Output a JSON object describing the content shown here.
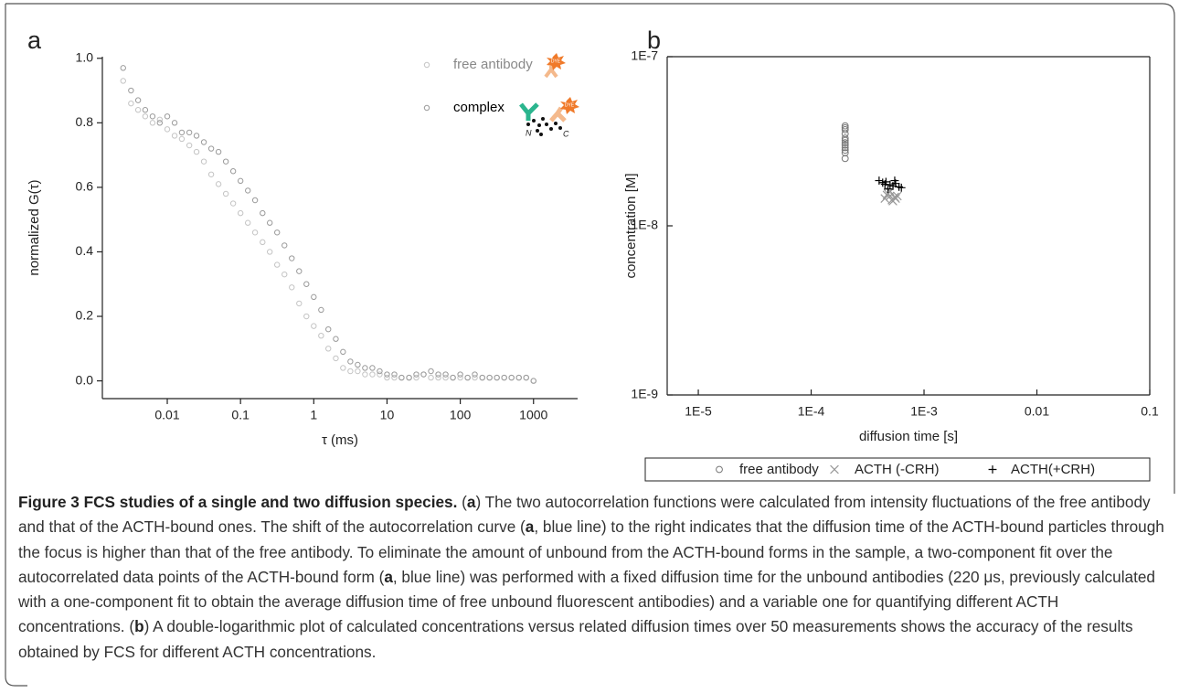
{
  "chart_data": [
    {
      "type": "scatter",
      "panel_label": "a",
      "x_label": "τ (ms)",
      "y_label": "normalized G(τ)",
      "xlog": true,
      "xlim": [
        0.0013,
        4000
      ],
      "ylim": [
        -0.055,
        1.005
      ],
      "xticks": [
        0.01,
        0.1,
        1,
        10,
        100,
        1000
      ],
      "yticks": [
        {
          "value": 0,
          "label": "0.0"
        },
        0.2,
        0.4,
        0.6,
        0.8,
        {
          "value": 1,
          "label": "1.0"
        }
      ],
      "legend": "upper right",
      "annotations": [
        "DYE",
        "N",
        "C"
      ],
      "x": [
        0.0025,
        0.0032,
        0.004,
        0.005,
        0.0063,
        0.0079,
        0.01,
        0.0126,
        0.0158,
        0.02,
        0.0251,
        0.0316,
        0.0398,
        0.0501,
        0.0631,
        0.0794,
        0.1,
        0.126,
        0.158,
        0.2,
        0.251,
        0.316,
        0.398,
        0.501,
        0.631,
        0.794,
        1,
        1.26,
        1.58,
        2,
        2.51,
        3.16,
        3.98,
        5.01,
        6.31,
        7.94,
        10,
        12.6,
        15.8,
        20,
        25.1,
        31.6,
        39.8,
        50.1,
        63.1,
        79.4,
        100,
        126,
        158,
        200,
        251,
        316,
        398,
        501,
        631,
        794,
        1000
      ],
      "series": [
        {
          "name": "free antibody",
          "color": "#c4c4c4",
          "marker": "circle",
          "values": [
            0.93,
            0.86,
            0.84,
            0.82,
            0.8,
            0.81,
            0.78,
            0.76,
            0.75,
            0.73,
            0.71,
            0.68,
            0.64,
            0.61,
            0.58,
            0.55,
            0.52,
            0.49,
            0.46,
            0.43,
            0.4,
            0.36,
            0.33,
            0.29,
            0.24,
            0.2,
            0.17,
            0.14,
            0.1,
            0.07,
            0.04,
            0.03,
            0.03,
            0.02,
            0.02,
            0.02,
            0.01,
            0.01,
            0.01,
            0.01,
            0.01,
            0.02,
            0.01,
            0.01,
            0.01,
            0.01,
            0.01,
            0.01,
            0.01,
            0.01,
            0.01,
            0.01,
            0.01,
            0.01,
            0.01,
            0.01,
            0.0
          ]
        },
        {
          "name": "complex",
          "color": "#9a9a9a",
          "marker": "circle",
          "values": [
            0.97,
            0.9,
            0.87,
            0.84,
            0.82,
            0.8,
            0.82,
            0.8,
            0.77,
            0.77,
            0.76,
            0.74,
            0.72,
            0.71,
            0.68,
            0.65,
            0.62,
            0.59,
            0.56,
            0.52,
            0.49,
            0.46,
            0.42,
            0.38,
            0.34,
            0.3,
            0.26,
            0.22,
            0.16,
            0.13,
            0.09,
            0.06,
            0.05,
            0.04,
            0.04,
            0.03,
            0.02,
            0.02,
            0.01,
            0.01,
            0.02,
            0.02,
            0.03,
            0.02,
            0.02,
            0.01,
            0.02,
            0.01,
            0.02,
            0.01,
            0.01,
            0.01,
            0.01,
            0.01,
            0.01,
            0.01,
            0.0
          ]
        }
      ]
    },
    {
      "type": "scatter",
      "panel_label": "b",
      "x_label": "diffusion time [s]",
      "y_label": "concentration [M]",
      "xlog": true,
      "ylog": true,
      "xlim": [
        5.3e-06,
        0.1
      ],
      "ylim": [
        1e-09,
        1e-07
      ],
      "xticks": [
        {
          "value": 1e-05,
          "label": "1E-5"
        },
        {
          "value": 0.0001,
          "label": "1E-4"
        },
        {
          "value": 0.001,
          "label": "1E-3"
        },
        0.01,
        0.1
      ],
      "yticks": [
        {
          "value": 1e-09,
          "label": "1E-9"
        },
        {
          "value": 1e-08,
          "label": "1E-8"
        },
        {
          "value": 1e-07,
          "label": "1E-7"
        }
      ],
      "legend": "below",
      "series": [
        {
          "name": "free antibody",
          "color": "#777777",
          "marker": "circle",
          "x": [
            0.0002,
            0.0002,
            0.0002,
            0.0002,
            0.0002,
            0.0002,
            0.0002,
            0.0002,
            0.0002,
            0.0002,
            0.0002,
            0.0002
          ],
          "values": [
            2.5e-08,
            2.7e-08,
            2.8e-08,
            2.9e-08,
            3e-08,
            3.1e-08,
            3.2e-08,
            3.3e-08,
            3.5e-08,
            3.7e-08,
            3.8e-08,
            3.9e-08
          ]
        },
        {
          "name": "ACTH (-CRH)",
          "color": "#999999",
          "marker": "x",
          "x": [
            0.00045,
            0.0005,
            0.00052,
            0.00055,
            0.00048,
            0.00053,
            0.00058,
            0.0005,
            0.00056,
            0.00047
          ],
          "values": [
            1.45e-08,
            1.5e-08,
            1.42e-08,
            1.48e-08,
            1.55e-08,
            1.4e-08,
            1.5e-08,
            1.6e-08,
            1.45e-08,
            1.52e-08
          ]
        },
        {
          "name": "ACTH(+CRH)",
          "color": "#000000",
          "marker": "plus",
          "x": [
            0.0004,
            0.00043,
            0.00046,
            0.0005,
            0.00053,
            0.00056,
            0.0006,
            0.00063,
            0.00048,
            0.00055,
            0.00045
          ],
          "values": [
            1.85e-08,
            1.8e-08,
            1.82e-08,
            1.75e-08,
            1.72e-08,
            1.78e-08,
            1.7e-08,
            1.68e-08,
            1.65e-08,
            1.85e-08,
            1.76e-08
          ]
        }
      ]
    }
  ],
  "caption": {
    "title": "Figure 3 FCS studies of a single and two diffusion species.",
    "body": [
      "(",
      "a",
      ") The two autocorrelation functions were calculated from intensity fluctuations of the free antibody and that of the ACTH-bound ones. The shift of the autocorrelation curve (",
      "a",
      ", blue line) to the right indicates that the diffusion time of the ACTH-bound particles through the focus is higher than that of the free antibody. To eliminate the amount of unbound from the ACTH-bound forms in the sample, a two-component fit over the autocorrelated data points of the ACTH-bound form (",
      "a",
      ", blue line) was performed with a fixed diffusion time for the unbound antibodies (220 μs, previously calculated with a one-component fit to obtain the average diffusion time of free unbound fluorescent antibodies) and a variable one for quantifying different ACTH concentrations. (",
      "b",
      ") A double-logarithmic plot of calculated concentrations versus related diffusion times over 50 measurements shows the accuracy of the results obtained by FCS for different ACTH concentrations."
    ]
  }
}
